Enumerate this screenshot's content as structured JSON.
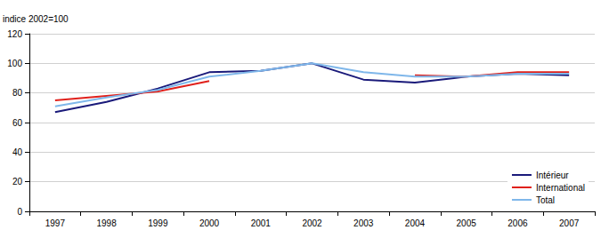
{
  "chart_data": {
    "type": "line",
    "y_label": "indice 2002=100",
    "categories": [
      "1997",
      "1998",
      "1999",
      "2000",
      "2001",
      "2002",
      "2003",
      "2004",
      "2005",
      "2006",
      "2007"
    ],
    "series": [
      {
        "name": "Intérieur",
        "color": "#1a1a7a",
        "values": [
          67,
          74,
          83,
          94,
          95,
          100,
          89,
          87,
          91,
          93,
          92
        ]
      },
      {
        "name": "International",
        "color": "#e0201b",
        "values": [
          75,
          78,
          81,
          88,
          null,
          null,
          null,
          92,
          91,
          94,
          94
        ]
      },
      {
        "name": "Total",
        "color": "#7fb7ea",
        "values": [
          71,
          77,
          82,
          91,
          95,
          100,
          94,
          91,
          91,
          93,
          93
        ]
      }
    ],
    "ylim": [
      0,
      120
    ],
    "yticks": [
      0,
      20,
      40,
      60,
      80,
      100,
      120
    ],
    "grid": true,
    "legend": "bottom-right"
  }
}
